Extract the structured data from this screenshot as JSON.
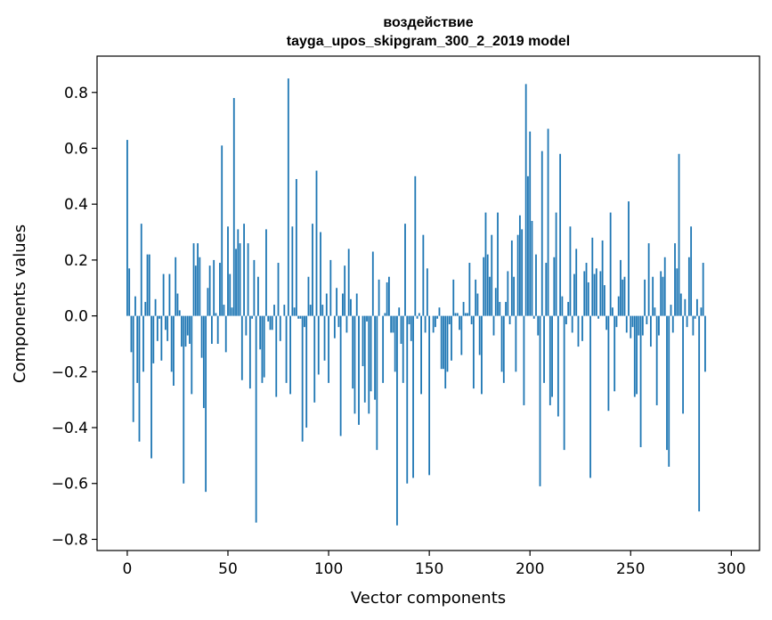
{
  "chart_data": {
    "type": "bar",
    "title_line1": "воздействие",
    "title_line2": "tayga_upos_skipgram_300_2_2019 model",
    "xlabel": "Vector components",
    "ylabel": "Components values",
    "xlim": [
      -15,
      314
    ],
    "ylim": [
      -0.84,
      0.93
    ],
    "xticks": [
      0,
      50,
      100,
      150,
      200,
      250,
      300
    ],
    "yticks": [
      -0.8,
      -0.6,
      -0.4,
      -0.2,
      0.0,
      0.2,
      0.4,
      0.6,
      0.8
    ],
    "ytick_labels": [
      "−0.8",
      "−0.6",
      "−0.4",
      "−0.2",
      "0.0",
      "0.2",
      "0.4",
      "0.6",
      "0.8"
    ],
    "bar_color": "#1f77b4",
    "values": [
      0.63,
      0.17,
      -0.13,
      -0.38,
      0.07,
      -0.24,
      -0.45,
      0.33,
      -0.2,
      0.05,
      0.22,
      0.22,
      -0.51,
      -0.17,
      0.06,
      -0.09,
      -0.01,
      -0.16,
      0.15,
      -0.05,
      -0.09,
      0.15,
      -0.2,
      -0.25,
      0.21,
      0.08,
      0.02,
      -0.11,
      -0.6,
      -0.11,
      -0.07,
      -0.1,
      -0.28,
      0.26,
      0.18,
      0.26,
      0.21,
      -0.15,
      -0.33,
      -0.63,
      0.1,
      0.18,
      -0.1,
      0.2,
      0.01,
      -0.1,
      0.19,
      0.61,
      0.04,
      -0.13,
      0.32,
      0.15,
      0.03,
      0.78,
      0.24,
      0.31,
      0.26,
      -0.23,
      0.33,
      -0.07,
      0.26,
      -0.26,
      -0.01,
      0.2,
      -0.74,
      0.14,
      -0.12,
      -0.24,
      -0.22,
      0.31,
      -0.02,
      -0.05,
      -0.05,
      0.04,
      -0.29,
      0.19,
      -0.09,
      0.0,
      0.04,
      -0.24,
      0.85,
      -0.28,
      0.32,
      0.03,
      0.49,
      -0.01,
      -0.01,
      -0.45,
      -0.04,
      -0.4,
      0.14,
      0.04,
      0.33,
      -0.31,
      0.52,
      -0.21,
      0.3,
      0.04,
      -0.16,
      0.08,
      -0.24,
      0.2,
      0.0,
      -0.08,
      0.1,
      -0.04,
      -0.43,
      0.08,
      0.18,
      -0.06,
      0.24,
      0.06,
      -0.26,
      -0.35,
      0.08,
      -0.39,
      0.0,
      -0.18,
      -0.31,
      -0.02,
      -0.35,
      -0.27,
      0.23,
      -0.3,
      -0.48,
      0.13,
      0.0,
      -0.24,
      0.01,
      0.12,
      0.14,
      -0.06,
      -0.06,
      -0.2,
      -0.75,
      0.03,
      -0.1,
      -0.24,
      0.33,
      -0.6,
      -0.03,
      -0.09,
      -0.58,
      0.5,
      -0.01,
      0.01,
      -0.28,
      0.29,
      -0.06,
      0.17,
      -0.57,
      0.0,
      -0.06,
      -0.04,
      -0.01,
      0.03,
      -0.19,
      -0.19,
      -0.26,
      -0.2,
      -0.03,
      -0.16,
      0.13,
      0.01,
      0.01,
      -0.05,
      -0.14,
      0.05,
      0.01,
      0.01,
      0.19,
      -0.03,
      -0.26,
      0.13,
      0.08,
      -0.14,
      -0.28,
      0.21,
      0.37,
      0.22,
      0.14,
      0.29,
      -0.07,
      0.1,
      0.37,
      0.05,
      -0.2,
      -0.24,
      0.05,
      0.16,
      -0.03,
      0.27,
      0.14,
      -0.2,
      0.29,
      0.36,
      0.31,
      -0.32,
      0.83,
      0.5,
      0.66,
      0.34,
      -0.01,
      0.22,
      -0.07,
      -0.61,
      0.59,
      -0.24,
      0.19,
      0.67,
      -0.32,
      -0.29,
      0.21,
      0.37,
      -0.36,
      0.58,
      0.07,
      -0.48,
      -0.03,
      0.05,
      0.32,
      -0.06,
      0.15,
      0.24,
      -0.11,
      0.0,
      -0.09,
      0.16,
      0.19,
      0.12,
      -0.58,
      0.28,
      0.15,
      0.17,
      -0.01,
      0.16,
      0.27,
      0.11,
      -0.05,
      -0.34,
      0.37,
      0.03,
      -0.27,
      -0.04,
      0.07,
      0.2,
      0.13,
      0.14,
      -0.06,
      0.41,
      -0.08,
      -0.04,
      -0.29,
      -0.28,
      -0.07,
      -0.47,
      -0.07,
      0.13,
      -0.03,
      0.26,
      -0.11,
      0.14,
      0.03,
      -0.32,
      -0.07,
      0.16,
      0.14,
      0.21,
      -0.48,
      -0.54,
      0.04,
      -0.06,
      0.26,
      0.17,
      0.58,
      0.08,
      -0.35,
      0.06,
      -0.04,
      0.21,
      0.32,
      -0.07,
      -0.01,
      0.06,
      -0.7,
      0.03,
      0.19,
      -0.2
    ]
  }
}
